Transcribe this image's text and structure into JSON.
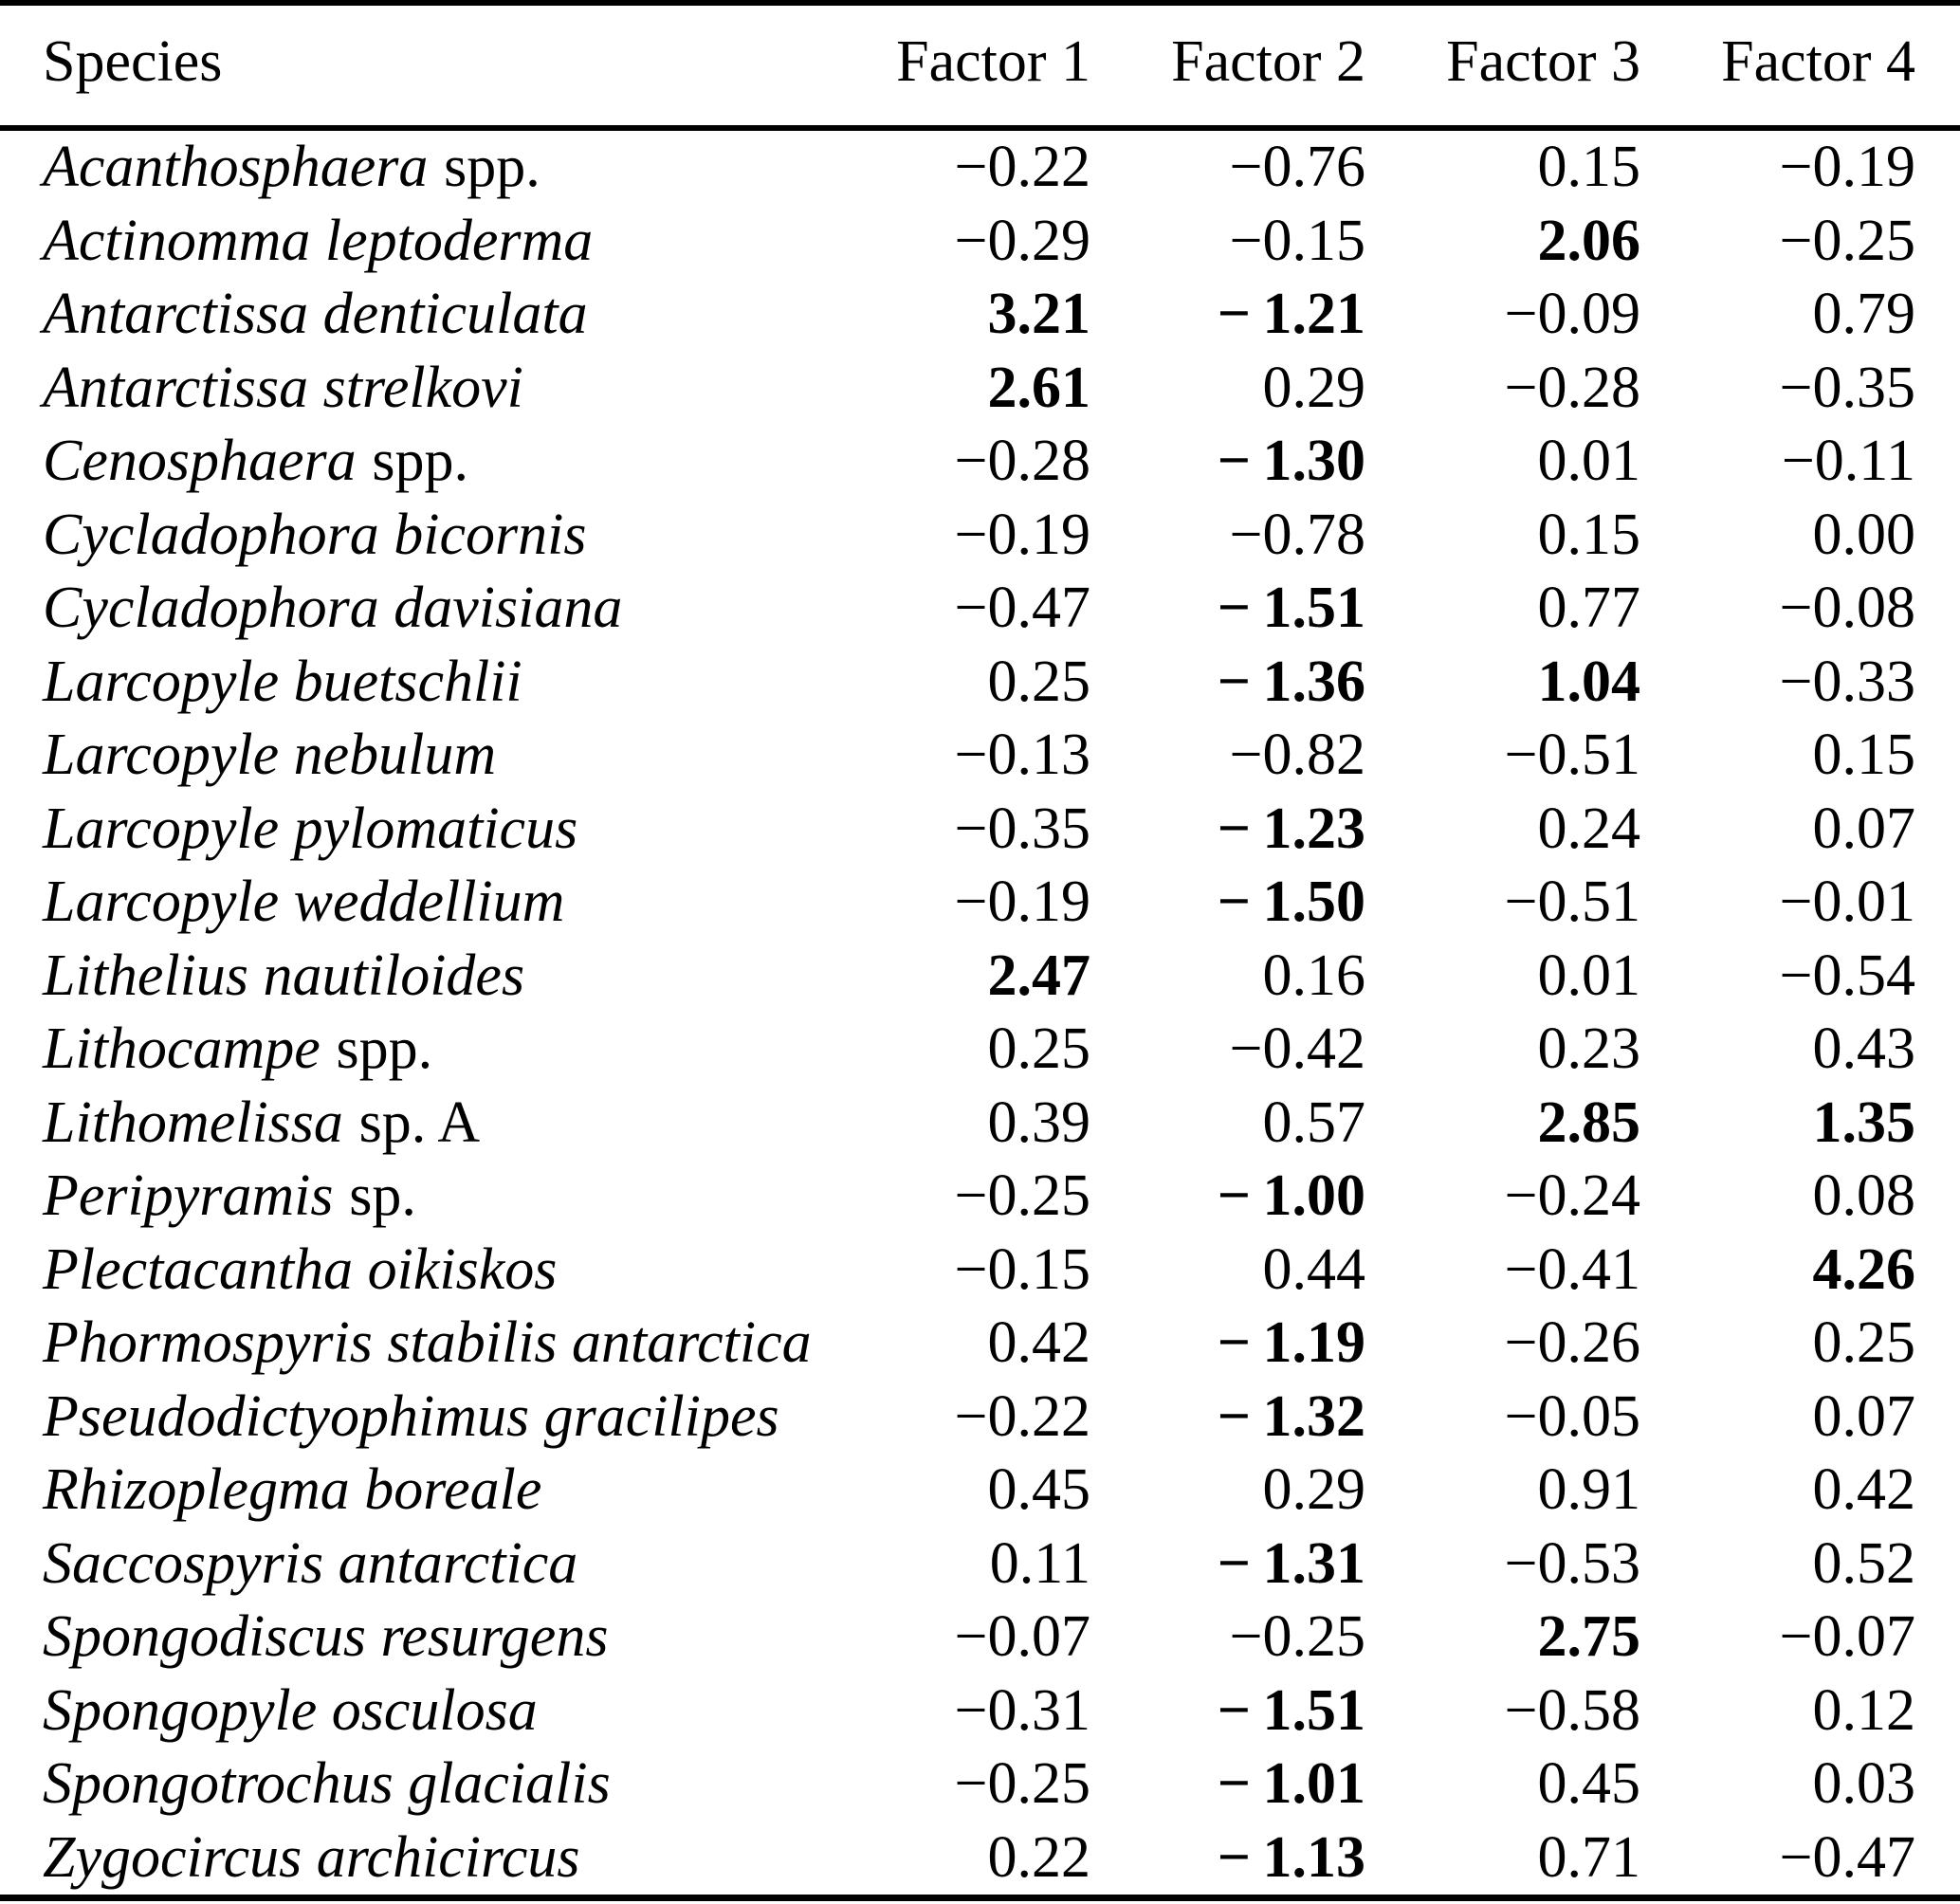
{
  "page": {
    "background": "#ffffff",
    "text_color": "#000000"
  },
  "table": {
    "columns": [
      "Species",
      "Factor 1",
      "Factor 2",
      "Factor 3",
      "Factor 4"
    ],
    "rows": [
      {
        "name": "Acanthosphaera",
        "suffix": "spp.",
        "values": [
          "−0.22",
          "−0.76",
          "0.15",
          "−0.19"
        ],
        "bold": [
          false,
          false,
          false,
          false
        ]
      },
      {
        "name": "Actinomma leptoderma",
        "suffix": "",
        "values": [
          "−0.29",
          "−0.15",
          "2.06",
          "−0.25"
        ],
        "bold": [
          false,
          false,
          true,
          false
        ]
      },
      {
        "name": "Antarctissa denticulata",
        "suffix": "",
        "values": [
          "3.21",
          "− 1.21",
          "−0.09",
          "0.79"
        ],
        "bold": [
          true,
          true,
          false,
          false
        ]
      },
      {
        "name": "Antarctissa strelkovi",
        "suffix": "",
        "values": [
          "2.61",
          "0.29",
          "−0.28",
          "−0.35"
        ],
        "bold": [
          true,
          false,
          false,
          false
        ]
      },
      {
        "name": "Cenosphaera",
        "suffix": "spp.",
        "values": [
          "−0.28",
          "− 1.30",
          "0.01",
          "−0.11"
        ],
        "bold": [
          false,
          true,
          false,
          false
        ]
      },
      {
        "name": "Cycladophora bicornis",
        "suffix": "",
        "values": [
          "−0.19",
          "−0.78",
          "0.15",
          "0.00"
        ],
        "bold": [
          false,
          false,
          false,
          false
        ]
      },
      {
        "name": "Cycladophora davisiana",
        "suffix": "",
        "values": [
          "−0.47",
          "− 1.51",
          "0.77",
          "−0.08"
        ],
        "bold": [
          false,
          true,
          false,
          false
        ]
      },
      {
        "name": "Larcopyle buetschlii",
        "suffix": "",
        "values": [
          "0.25",
          "− 1.36",
          "1.04",
          "−0.33"
        ],
        "bold": [
          false,
          true,
          true,
          false
        ]
      },
      {
        "name": "Larcopyle nebulum",
        "suffix": "",
        "values": [
          "−0.13",
          "−0.82",
          "−0.51",
          "0.15"
        ],
        "bold": [
          false,
          false,
          false,
          false
        ]
      },
      {
        "name": "Larcopyle pylomaticus",
        "suffix": "",
        "values": [
          "−0.35",
          "− 1.23",
          "0.24",
          "0.07"
        ],
        "bold": [
          false,
          true,
          false,
          false
        ]
      },
      {
        "name": "Larcopyle weddellium",
        "suffix": "",
        "values": [
          "−0.19",
          "− 1.50",
          "−0.51",
          "−0.01"
        ],
        "bold": [
          false,
          true,
          false,
          false
        ]
      },
      {
        "name": "Lithelius nautiloides",
        "suffix": "",
        "values": [
          "2.47",
          "0.16",
          "0.01",
          "−0.54"
        ],
        "bold": [
          true,
          false,
          false,
          false
        ]
      },
      {
        "name": "Lithocampe",
        "suffix": "spp.",
        "values": [
          "0.25",
          "−0.42",
          "0.23",
          "0.43"
        ],
        "bold": [
          false,
          false,
          false,
          false
        ]
      },
      {
        "name": "Lithomelissa",
        "suffix": "sp. A",
        "values": [
          "0.39",
          "0.57",
          "2.85",
          "1.35"
        ],
        "bold": [
          false,
          false,
          true,
          true
        ]
      },
      {
        "name": "Peripyramis",
        "suffix": "sp.",
        "values": [
          "−0.25",
          "− 1.00",
          "−0.24",
          "0.08"
        ],
        "bold": [
          false,
          true,
          false,
          false
        ]
      },
      {
        "name": "Plectacantha oikiskos",
        "suffix": "",
        "values": [
          "−0.15",
          "0.44",
          "−0.41",
          "4.26"
        ],
        "bold": [
          false,
          false,
          false,
          true
        ]
      },
      {
        "name": "Phormospyris stabilis antarctica",
        "suffix": "",
        "values": [
          "0.42",
          "− 1.19",
          "−0.26",
          "0.25"
        ],
        "bold": [
          false,
          true,
          false,
          false
        ]
      },
      {
        "name": "Pseudodictyophimus gracilipes",
        "suffix": "",
        "values": [
          "−0.22",
          "− 1.32",
          "−0.05",
          "0.07"
        ],
        "bold": [
          false,
          true,
          false,
          false
        ]
      },
      {
        "name": "Rhizoplegma boreale",
        "suffix": "",
        "values": [
          "0.45",
          "0.29",
          "0.91",
          "0.42"
        ],
        "bold": [
          false,
          false,
          false,
          false
        ]
      },
      {
        "name": "Saccospyris antarctica",
        "suffix": "",
        "values": [
          "0.11",
          "− 1.31",
          "−0.53",
          "0.52"
        ],
        "bold": [
          false,
          true,
          false,
          false
        ]
      },
      {
        "name": "Spongodiscus resurgens",
        "suffix": "",
        "values": [
          "−0.07",
          "−0.25",
          "2.75",
          "−0.07"
        ],
        "bold": [
          false,
          false,
          true,
          false
        ]
      },
      {
        "name": "Spongopyle osculosa",
        "suffix": "",
        "values": [
          "−0.31",
          "− 1.51",
          "−0.58",
          "0.12"
        ],
        "bold": [
          false,
          true,
          false,
          false
        ]
      },
      {
        "name": "Spongotrochus glacialis",
        "suffix": "",
        "values": [
          "−0.25",
          "− 1.01",
          "0.45",
          "0.03"
        ],
        "bold": [
          false,
          true,
          false,
          false
        ]
      },
      {
        "name": "Zygocircus archicircus",
        "suffix": "",
        "values": [
          "0.22",
          "− 1.13",
          "0.71",
          "−0.47"
        ],
        "bold": [
          false,
          true,
          false,
          false
        ]
      }
    ]
  }
}
